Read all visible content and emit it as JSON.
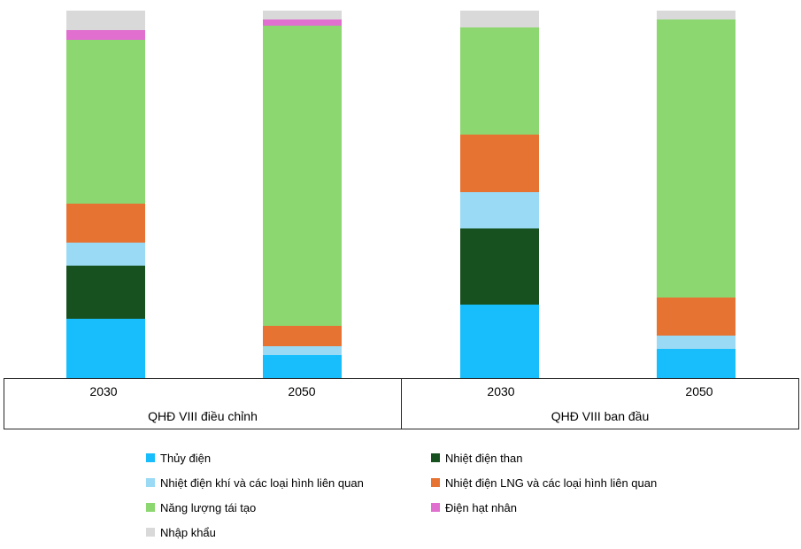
{
  "chart_data": {
    "type": "bar",
    "stacked": true,
    "percent_stacked": true,
    "title": "",
    "xlabel": "",
    "ylabel": "",
    "ylim": [
      0,
      100
    ],
    "grid": false,
    "legend_position": "bottom",
    "groups": [
      {
        "label": "QHĐ VIII điều chỉnh",
        "categories": [
          "2030",
          "2050"
        ]
      },
      {
        "label": "QHĐ VIII ban đầu",
        "categories": [
          "2030",
          "2050"
        ]
      }
    ],
    "bar_order": [
      "QHĐ VIII điều chỉnh – 2030",
      "QHĐ VIII điều chỉnh – 2050",
      "QHĐ VIII ban đầu – 2030",
      "QHĐ VIII ban đầu – 2050"
    ],
    "series": [
      {
        "name": "Thủy điện",
        "color": "#18BEFB",
        "values": [
          16.1,
          6.3,
          20.0,
          8.0
        ]
      },
      {
        "name": "Nhiệt điện than",
        "color": "#17511F",
        "values": [
          14.5,
          0,
          20.7,
          0
        ]
      },
      {
        "name": "Nhiệt điện khí và các loại hình liên quan",
        "color": "#9ADAF5",
        "values": [
          6.3,
          2.4,
          10.0,
          3.5
        ]
      },
      {
        "name": "Nhiệt điện LNG và các loại hình liên quan",
        "color": "#E77333",
        "values": [
          10.6,
          5.6,
          15.6,
          10.4
        ]
      },
      {
        "name": "Năng lượng tái tạo",
        "color": "#8CD76F",
        "values": [
          44.6,
          81.5,
          29.1,
          75.7
        ]
      },
      {
        "name": "Điện hạt nhân",
        "color": "#E06FD0",
        "values": [
          2.7,
          1.8,
          0,
          0
        ]
      },
      {
        "name": "Nhập khẩu",
        "color": "#D9D9D9",
        "values": [
          5.2,
          2.4,
          4.6,
          2.4
        ]
      }
    ]
  },
  "axis": {
    "group1_label": "QHĐ VIII điều chỉnh",
    "group2_label": "QHĐ VIII ban đầu",
    "g1_year1": "2030",
    "g1_year2": "2050",
    "g2_year1": "2030",
    "g2_year2": "2050"
  },
  "colors": {
    "background": "#FFFFFF",
    "axis_line": "#262626",
    "text": "#000000"
  }
}
